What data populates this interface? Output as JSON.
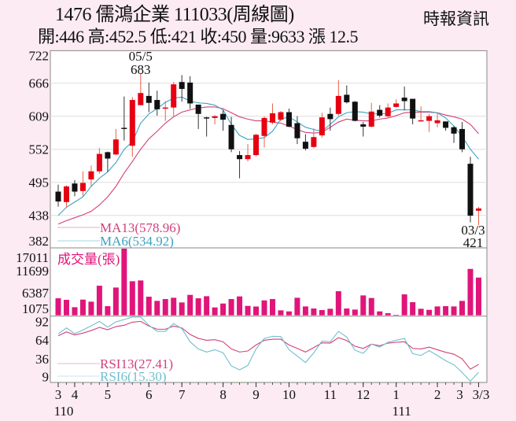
{
  "header": {
    "title": "1476 儒鴻企業 111033(周線圖)",
    "subtitle": "開:446 高:452.5 低:421 收:450 量:9633 漲 12.5",
    "source": "時報資訊"
  },
  "colors": {
    "up": "#e60012",
    "down": "#111111",
    "ma13": "#d2407a",
    "ma6": "#3aa3c2",
    "volume": "#e0157a",
    "rsi13": "#d2407a",
    "rsi6": "#6fbfcf",
    "background": "#fcebf2"
  },
  "chart_data": [
    {
      "type": "candlestick",
      "ylim": [
        382,
        722
      ],
      "yticks": [
        "722",
        "666",
        "609",
        "552",
        "495",
        "438",
        "382"
      ],
      "grid": true,
      "annotations": [
        {
          "date": "05/5",
          "value": "683",
          "index": 10
        },
        {
          "date": "03/3",
          "value": "421",
          "index": 51
        }
      ],
      "ohlc": [
        [
          479,
          491,
          453,
          462
        ],
        [
          461,
          490,
          452,
          488
        ],
        [
          493,
          499,
          471,
          479
        ],
        [
          480,
          514,
          471,
          494
        ],
        [
          500,
          524,
          488,
          514
        ],
        [
          514,
          554,
          510,
          544
        ],
        [
          547,
          548,
          513,
          536
        ],
        [
          543,
          587,
          542,
          569
        ],
        [
          589,
          643,
          567,
          588
        ],
        [
          558,
          642,
          539,
          637
        ],
        [
          628,
          683,
          628,
          649
        ],
        [
          644,
          667,
          616,
          632
        ],
        [
          637,
          653,
          610,
          621
        ],
        [
          624,
          635,
          601,
          624
        ],
        [
          624,
          668,
          608,
          664
        ],
        [
          668,
          680,
          634,
          656
        ],
        [
          667,
          678,
          622,
          631
        ],
        [
          629,
          629,
          587,
          613
        ],
        [
          607,
          608,
          574,
          606
        ],
        [
          606,
          611,
          595,
          609
        ],
        [
          613,
          619,
          584,
          603
        ],
        [
          594,
          608,
          547,
          552
        ],
        [
          542,
          549,
          502,
          535
        ],
        [
          535,
          561,
          531,
          542
        ],
        [
          542,
          579,
          540,
          577
        ],
        [
          575,
          609,
          555,
          606
        ],
        [
          598,
          631,
          595,
          614
        ],
        [
          603,
          618,
          600,
          616
        ],
        [
          616,
          622,
          590,
          591
        ],
        [
          597,
          609,
          561,
          571
        ],
        [
          565,
          578,
          550,
          553
        ],
        [
          556,
          588,
          554,
          573
        ],
        [
          576,
          615,
          572,
          607
        ],
        [
          613,
          624,
          584,
          604
        ],
        [
          613,
          671,
          610,
          644
        ],
        [
          646,
          662,
          631,
          633
        ],
        [
          634,
          635,
          600,
          601
        ],
        [
          595,
          599,
          574,
          591
        ],
        [
          591,
          632,
          590,
          617
        ],
        [
          620,
          628,
          607,
          610
        ],
        [
          609,
          631,
          607,
          624
        ],
        [
          625,
          638,
          624,
          631
        ],
        [
          641,
          660,
          619,
          635
        ],
        [
          639,
          639,
          595,
          605
        ],
        [
          601,
          626,
          601,
          602
        ],
        [
          601,
          613,
          582,
          609
        ],
        [
          597,
          615,
          590,
          602
        ],
        [
          600,
          600,
          584,
          589
        ],
        [
          590,
          592,
          563,
          579
        ],
        [
          587,
          599,
          547,
          552
        ],
        [
          527,
          539,
          426,
          437.5
        ],
        [
          446,
          452.5,
          421,
          450
        ]
      ],
      "series": [
        {
          "name": "MA13(578.96)",
          "values": [
            423,
            429,
            434,
            439,
            445,
            456,
            470,
            488,
            511,
            531,
            552,
            570,
            583,
            597,
            608,
            616,
            620,
            623,
            625,
            625,
            622,
            615,
            608,
            604,
            601,
            601,
            599,
            597,
            592,
            586,
            581,
            580,
            581,
            590,
            599,
            604,
            602,
            601,
            601,
            604,
            606,
            610,
            615,
            616,
            616,
            616,
            615,
            611,
            608,
            604,
            595,
            578.96
          ]
        },
        {
          "name": "MA6(534.92)",
          "values": [
            438,
            452,
            461,
            470,
            488,
            502,
            513,
            529,
            552,
            565,
            597,
            613,
            622,
            633,
            640,
            642,
            635,
            632,
            631,
            628,
            620,
            595,
            576,
            569,
            570,
            572,
            583,
            604,
            608,
            599,
            590,
            586,
            583,
            595,
            608,
            615,
            617,
            616,
            613,
            613,
            614,
            620,
            620,
            620,
            617,
            617,
            615,
            606,
            592,
            574,
            552,
            534.92
          ]
        }
      ]
    },
    {
      "type": "bar",
      "title": "成交量(張)",
      "yticks": [
        "17011",
        "11699",
        "6387",
        "1075"
      ],
      "ylim": [
        0,
        17011
      ],
      "values": [
        4350,
        3950,
        2070,
        4010,
        3480,
        7560,
        2340,
        7090,
        17011,
        8700,
        8900,
        4750,
        3680,
        4150,
        4480,
        3280,
        5220,
        4350,
        4880,
        2010,
        3010,
        4150,
        4820,
        2410,
        2250,
        3810,
        4150,
        1270,
        1000,
        4480,
        2270,
        1740,
        1340,
        1670,
        6150,
        1740,
        1470,
        5080,
        4420,
        1000,
        535,
        130,
        5350,
        3350,
        1670,
        1400,
        2270,
        2340,
        2270,
        3680,
        11840,
        9633
      ]
    },
    {
      "type": "line",
      "ylim": [
        0,
        100
      ],
      "yticks": [
        "92",
        "64",
        "36",
        "9"
      ],
      "xticks": [
        {
          "label": "3",
          "sub": "110",
          "index": 0
        },
        {
          "label": "4",
          "index": 2
        },
        {
          "label": "5",
          "index": 6
        },
        {
          "label": "6",
          "index": 11
        },
        {
          "label": "7",
          "index": 15
        },
        {
          "label": "8",
          "index": 20
        },
        {
          "label": "9",
          "index": 24
        },
        {
          "label": "10",
          "index": 28
        },
        {
          "label": "11",
          "index": 33
        },
        {
          "label": "12",
          "index": 37
        },
        {
          "label": "1",
          "sub": "111",
          "index": 41
        },
        {
          "label": "2",
          "index": 46
        },
        {
          "label": "3",
          "index": 49
        },
        {
          "label": "3/3",
          "index": 51
        }
      ],
      "series": [
        {
          "name": "RSI13(27.41)",
          "values": [
            70.6,
            76.5,
            71.8,
            74.6,
            78.5,
            83.3,
            79.7,
            84.5,
            86.5,
            91.2,
            92.4,
            85.3,
            80.5,
            80.5,
            85.3,
            82.5,
            72.6,
            66.6,
            63.8,
            64.6,
            61.5,
            50.7,
            46,
            47.6,
            56.7,
            63.8,
            65.4,
            65.4,
            56.7,
            51.5,
            46,
            52.7,
            59.9,
            59.5,
            67.8,
            63.4,
            54.7,
            51.5,
            57.9,
            55.5,
            59.5,
            60.7,
            61.5,
            51.5,
            50.7,
            53.5,
            49.5,
            45.6,
            42.8,
            35.7,
            20,
            27.41
          ]
        },
        {
          "name": "RSI6(15.30)",
          "values": [
            73.4,
            82.5,
            73.8,
            79.3,
            85.7,
            92.4,
            83.7,
            91.6,
            95.2,
            99,
            99,
            86.5,
            77.3,
            77.3,
            89.2,
            81.3,
            61.5,
            50.7,
            46,
            49.5,
            44.8,
            25,
            19,
            25.7,
            50.7,
            66.6,
            69.8,
            69.4,
            49.5,
            40,
            30.1,
            44.8,
            62.6,
            61.5,
            77.3,
            68.6,
            48.7,
            44,
            57.9,
            53.5,
            60.7,
            63.8,
            66.6,
            43.6,
            40.8,
            48,
            40.8,
            32.9,
            26.9,
            15,
            2,
            15.3
          ]
        }
      ]
    }
  ]
}
